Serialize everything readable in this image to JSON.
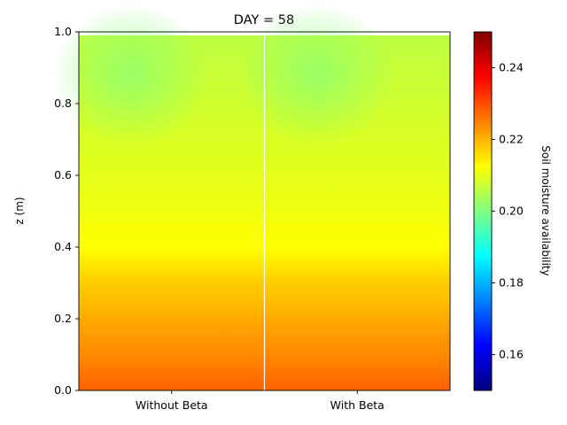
{
  "chart_data": {
    "type": "heatmap",
    "title": "DAY = 58",
    "xlabel": "",
    "ylabel": "z (m)",
    "ylim": [
      0,
      1.0
    ],
    "yticks": [
      0.0,
      0.2,
      0.4,
      0.6,
      0.8,
      1.0
    ],
    "ytick_labels": [
      "0.0",
      "0.2",
      "0.4",
      "0.6",
      "0.8",
      "1.0"
    ],
    "categories": [
      "Without Beta",
      "With Beta"
    ],
    "colormap": "jet",
    "colorbar": {
      "label": "Soil moisture availability",
      "range": [
        0.15,
        0.25
      ],
      "ticks": [
        0.16,
        0.18,
        0.2,
        0.22,
        0.24
      ],
      "tick_labels": [
        "0.16",
        "0.18",
        "0.20",
        "0.22",
        "0.24"
      ]
    },
    "profile": {
      "z": [
        0.0,
        0.05,
        0.1,
        0.15,
        0.2,
        0.25,
        0.3,
        0.35,
        0.4,
        0.5,
        0.6,
        0.7,
        0.8,
        0.9,
        1.0
      ],
      "values": [
        0.228,
        0.226,
        0.224,
        0.2225,
        0.221,
        0.219,
        0.2175,
        0.215,
        0.2125,
        0.211,
        0.21,
        0.209,
        0.208,
        0.207,
        0.206
      ]
    },
    "series": [
      {
        "name": "Without Beta",
        "min_value": 0.201,
        "min_value_z": 0.88
      },
      {
        "name": "With Beta",
        "min_value": 0.201,
        "min_value_z": 0.88
      }
    ],
    "grid": false
  }
}
